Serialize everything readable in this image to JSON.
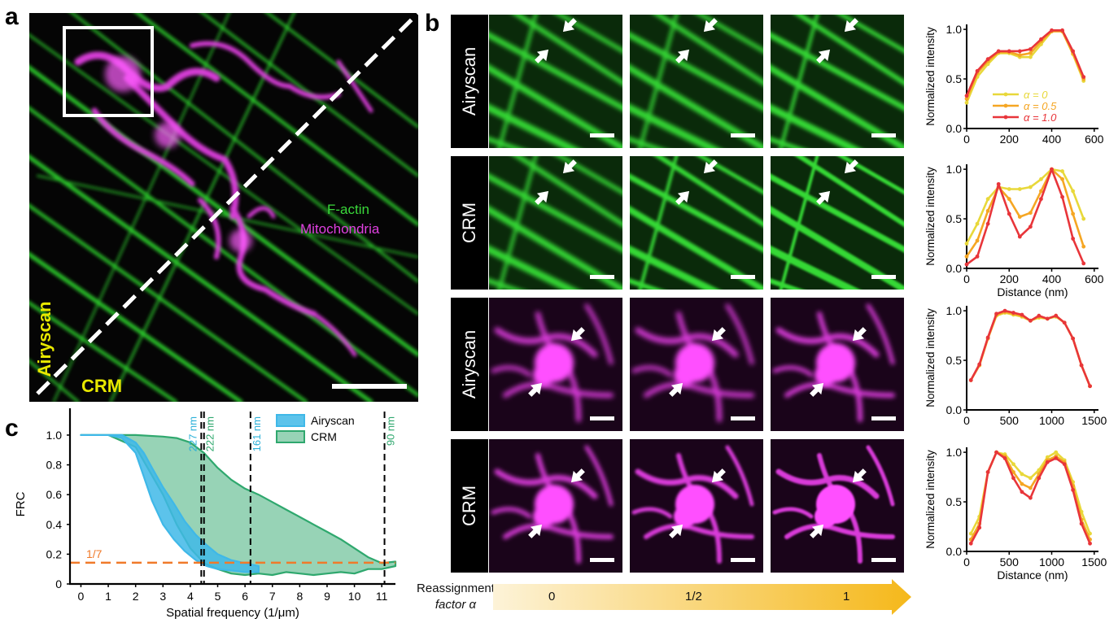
{
  "panels": {
    "a": "a",
    "b": "b",
    "c": "c"
  },
  "panel_a": {
    "label_airyscan": "Airyscan",
    "label_crm": "CRM",
    "legend_factin": "F-actin",
    "legend_mito": "Mitochondria",
    "colors": {
      "factin": "#33cc33",
      "mito": "#e040e0",
      "label_yellow": "#e8e800"
    }
  },
  "panel_b": {
    "row_labels": [
      "Airyscan",
      "CRM",
      "Airyscan",
      "CRM"
    ],
    "reassignment_label_line1": "Reassignment",
    "reassignment_label_line2": "factor α",
    "arrow_ticks": [
      "0",
      "1/2",
      "1"
    ],
    "profile_legend": [
      "α = 0",
      "α = 0.5",
      "α = 1.0"
    ],
    "series_colors": [
      "#e8d83a",
      "#f5a623",
      "#e8353a"
    ]
  },
  "chart_data": [
    {
      "type": "line",
      "xlabel": "",
      "ylabel": "Normalized intensity",
      "xticks": [
        "0",
        "200",
        "400",
        "600"
      ],
      "yticks": [
        "0.0",
        "0.5",
        "1.0"
      ],
      "xlim": [
        0,
        620
      ],
      "ylim": [
        0,
        1.05
      ],
      "series": [
        {
          "name": "α = 0",
          "x": [
            0,
            50,
            100,
            150,
            200,
            250,
            300,
            350,
            400,
            450,
            500,
            550
          ],
          "y": [
            0.26,
            0.52,
            0.65,
            0.76,
            0.76,
            0.72,
            0.72,
            0.85,
            0.98,
            0.98,
            0.75,
            0.48
          ]
        },
        {
          "name": "α = 0.5",
          "x": [
            0,
            50,
            100,
            150,
            200,
            250,
            300,
            350,
            400,
            450,
            500,
            550
          ],
          "y": [
            0.3,
            0.56,
            0.68,
            0.77,
            0.77,
            0.74,
            0.76,
            0.88,
            0.98,
            0.98,
            0.76,
            0.5
          ]
        },
        {
          "name": "α = 1.0",
          "x": [
            0,
            50,
            100,
            150,
            200,
            250,
            300,
            350,
            400,
            450,
            500,
            550
          ],
          "y": [
            0.33,
            0.58,
            0.7,
            0.78,
            0.78,
            0.78,
            0.8,
            0.9,
            0.99,
            0.99,
            0.78,
            0.52
          ]
        }
      ]
    },
    {
      "type": "line",
      "xlabel": "Distance (nm)",
      "ylabel": "Normalized intensity",
      "xticks": [
        "0",
        "200",
        "400",
        "600"
      ],
      "yticks": [
        "0.0",
        "0.5",
        "1.0"
      ],
      "xlim": [
        0,
        620
      ],
      "ylim": [
        0,
        1.05
      ],
      "series": [
        {
          "name": "α = 0",
          "x": [
            0,
            50,
            100,
            150,
            200,
            250,
            300,
            350,
            400,
            450,
            500,
            550
          ],
          "y": [
            0.25,
            0.45,
            0.7,
            0.82,
            0.8,
            0.8,
            0.82,
            0.9,
            1.0,
            0.98,
            0.78,
            0.5
          ]
        },
        {
          "name": "α = 0.5",
          "x": [
            0,
            50,
            100,
            150,
            200,
            250,
            300,
            350,
            400,
            450,
            500,
            550
          ],
          "y": [
            0.12,
            0.28,
            0.58,
            0.82,
            0.7,
            0.52,
            0.56,
            0.78,
            1.0,
            0.9,
            0.55,
            0.22
          ]
        },
        {
          "name": "α = 1.0",
          "x": [
            0,
            50,
            100,
            150,
            200,
            250,
            300,
            350,
            400,
            450,
            500,
            550
          ],
          "y": [
            0.04,
            0.12,
            0.45,
            0.85,
            0.55,
            0.32,
            0.42,
            0.7,
            1.0,
            0.72,
            0.3,
            0.05
          ]
        }
      ]
    },
    {
      "type": "line",
      "xlabel": "",
      "ylabel": "Normalized intensity",
      "xticks": [
        "0",
        "500",
        "1000",
        "1500"
      ],
      "yticks": [
        "0.0",
        "0.5",
        "1.0"
      ],
      "xlim": [
        0,
        1550
      ],
      "ylim": [
        0,
        1.05
      ],
      "series": [
        {
          "name": "α = 0",
          "x": [
            50,
            150,
            250,
            350,
            450,
            550,
            650,
            750,
            850,
            950,
            1050,
            1150,
            1250,
            1350,
            1450
          ],
          "y": [
            0.3,
            0.45,
            0.72,
            0.95,
            0.98,
            0.96,
            0.94,
            0.9,
            0.93,
            0.92,
            0.94,
            0.88,
            0.72,
            0.45,
            0.24
          ]
        },
        {
          "name": "α = 0.5",
          "x": [
            50,
            150,
            250,
            350,
            450,
            550,
            650,
            750,
            850,
            950,
            1050,
            1150,
            1250,
            1350,
            1450
          ],
          "y": [
            0.3,
            0.45,
            0.72,
            0.96,
            0.99,
            0.97,
            0.95,
            0.9,
            0.94,
            0.92,
            0.95,
            0.88,
            0.72,
            0.45,
            0.24
          ]
        },
        {
          "name": "α = 1.0",
          "x": [
            50,
            150,
            250,
            350,
            450,
            550,
            650,
            750,
            850,
            950,
            1050,
            1150,
            1250,
            1350,
            1450
          ],
          "y": [
            0.3,
            0.46,
            0.73,
            0.97,
            1.0,
            0.98,
            0.96,
            0.9,
            0.95,
            0.92,
            0.95,
            0.88,
            0.72,
            0.45,
            0.24
          ]
        }
      ]
    },
    {
      "type": "line",
      "xlabel": "Distance (nm)",
      "ylabel": "Normalized intensity",
      "xticks": [
        "0",
        "500",
        "1000",
        "1500"
      ],
      "yticks": [
        "0.0",
        "0.5",
        "1.0"
      ],
      "xlim": [
        0,
        1550
      ],
      "ylim": [
        0,
        1.05
      ],
      "series": [
        {
          "name": "α = 0",
          "x": [
            50,
            150,
            250,
            350,
            450,
            550,
            650,
            750,
            850,
            950,
            1050,
            1150,
            1250,
            1350,
            1450
          ],
          "y": [
            0.18,
            0.35,
            0.8,
            1.0,
            0.98,
            0.88,
            0.78,
            0.74,
            0.82,
            0.95,
            1.0,
            0.92,
            0.7,
            0.4,
            0.18
          ]
        },
        {
          "name": "α = 0.5",
          "x": [
            50,
            150,
            250,
            350,
            450,
            550,
            650,
            750,
            850,
            950,
            1050,
            1150,
            1250,
            1350,
            1450
          ],
          "y": [
            0.12,
            0.28,
            0.8,
            1.0,
            0.96,
            0.8,
            0.68,
            0.64,
            0.78,
            0.92,
            0.96,
            0.9,
            0.66,
            0.32,
            0.12
          ]
        },
        {
          "name": "α = 1.0",
          "x": [
            50,
            150,
            250,
            350,
            450,
            550,
            650,
            750,
            850,
            950,
            1050,
            1150,
            1250,
            1350,
            1450
          ],
          "y": [
            0.08,
            0.24,
            0.8,
            1.0,
            0.94,
            0.74,
            0.6,
            0.54,
            0.74,
            0.9,
            0.94,
            0.88,
            0.62,
            0.28,
            0.08
          ]
        }
      ]
    },
    {
      "type": "area",
      "xlabel": "Spatial frequency (1/μm)",
      "ylabel": "FRC",
      "xticks": [
        "0",
        "1",
        "2",
        "3",
        "4",
        "5",
        "6",
        "7",
        "8",
        "9",
        "10",
        "11"
      ],
      "yticks": [
        "0",
        "0.2",
        "0.4",
        "0.6",
        "0.8",
        "1.0"
      ],
      "xlim": [
        -0.4,
        11.5
      ],
      "ylim": [
        0,
        1.18
      ],
      "threshold": {
        "label": "1/7",
        "y": 0.143,
        "color": "#f07a2a"
      },
      "markers": [
        {
          "x": 4.4,
          "label": "227 nm",
          "color": "#2ab0d8"
        },
        {
          "x": 4.5,
          "label": "222 nm",
          "color": "#2fa86e"
        },
        {
          "x": 6.2,
          "label": "161 nm",
          "color": "#2ab0d8"
        },
        {
          "x": 11.1,
          "label": "90 nm",
          "color": "#2fa86e"
        }
      ],
      "series": [
        {
          "name": "Airyscan",
          "color": "#3fb8e8",
          "x": [
            0,
            1,
            1.5,
            2,
            2.3,
            2.6,
            3,
            3.4,
            3.8,
            4.2,
            4.6,
            5,
            5.5,
            6,
            6.5
          ],
          "upper": [
            1.0,
            1.0,
            1.0,
            0.95,
            0.88,
            0.78,
            0.65,
            0.54,
            0.42,
            0.33,
            0.26,
            0.2,
            0.16,
            0.14,
            0.12
          ],
          "lower": [
            1.0,
            1.0,
            0.98,
            0.88,
            0.72,
            0.56,
            0.4,
            0.3,
            0.22,
            0.16,
            0.12,
            0.1,
            0.09,
            0.08,
            0.08
          ]
        },
        {
          "name": "CRM",
          "color": "#2fa86e",
          "x": [
            0,
            1,
            2,
            3,
            3.5,
            4,
            4.5,
            5,
            5.5,
            6,
            6.5,
            7,
            7.5,
            8,
            8.5,
            9,
            9.5,
            10,
            10.5,
            11,
            11.5
          ],
          "upper": [
            1.0,
            1.0,
            1.0,
            0.99,
            0.98,
            0.95,
            0.88,
            0.78,
            0.7,
            0.64,
            0.6,
            0.55,
            0.5,
            0.45,
            0.4,
            0.35,
            0.3,
            0.24,
            0.18,
            0.14,
            0.15
          ],
          "lower": [
            1.0,
            1.0,
            0.92,
            0.6,
            0.4,
            0.24,
            0.14,
            0.1,
            0.07,
            0.06,
            0.07,
            0.06,
            0.08,
            0.07,
            0.06,
            0.07,
            0.08,
            0.07,
            0.1,
            0.1,
            0.12
          ]
        }
      ]
    }
  ]
}
